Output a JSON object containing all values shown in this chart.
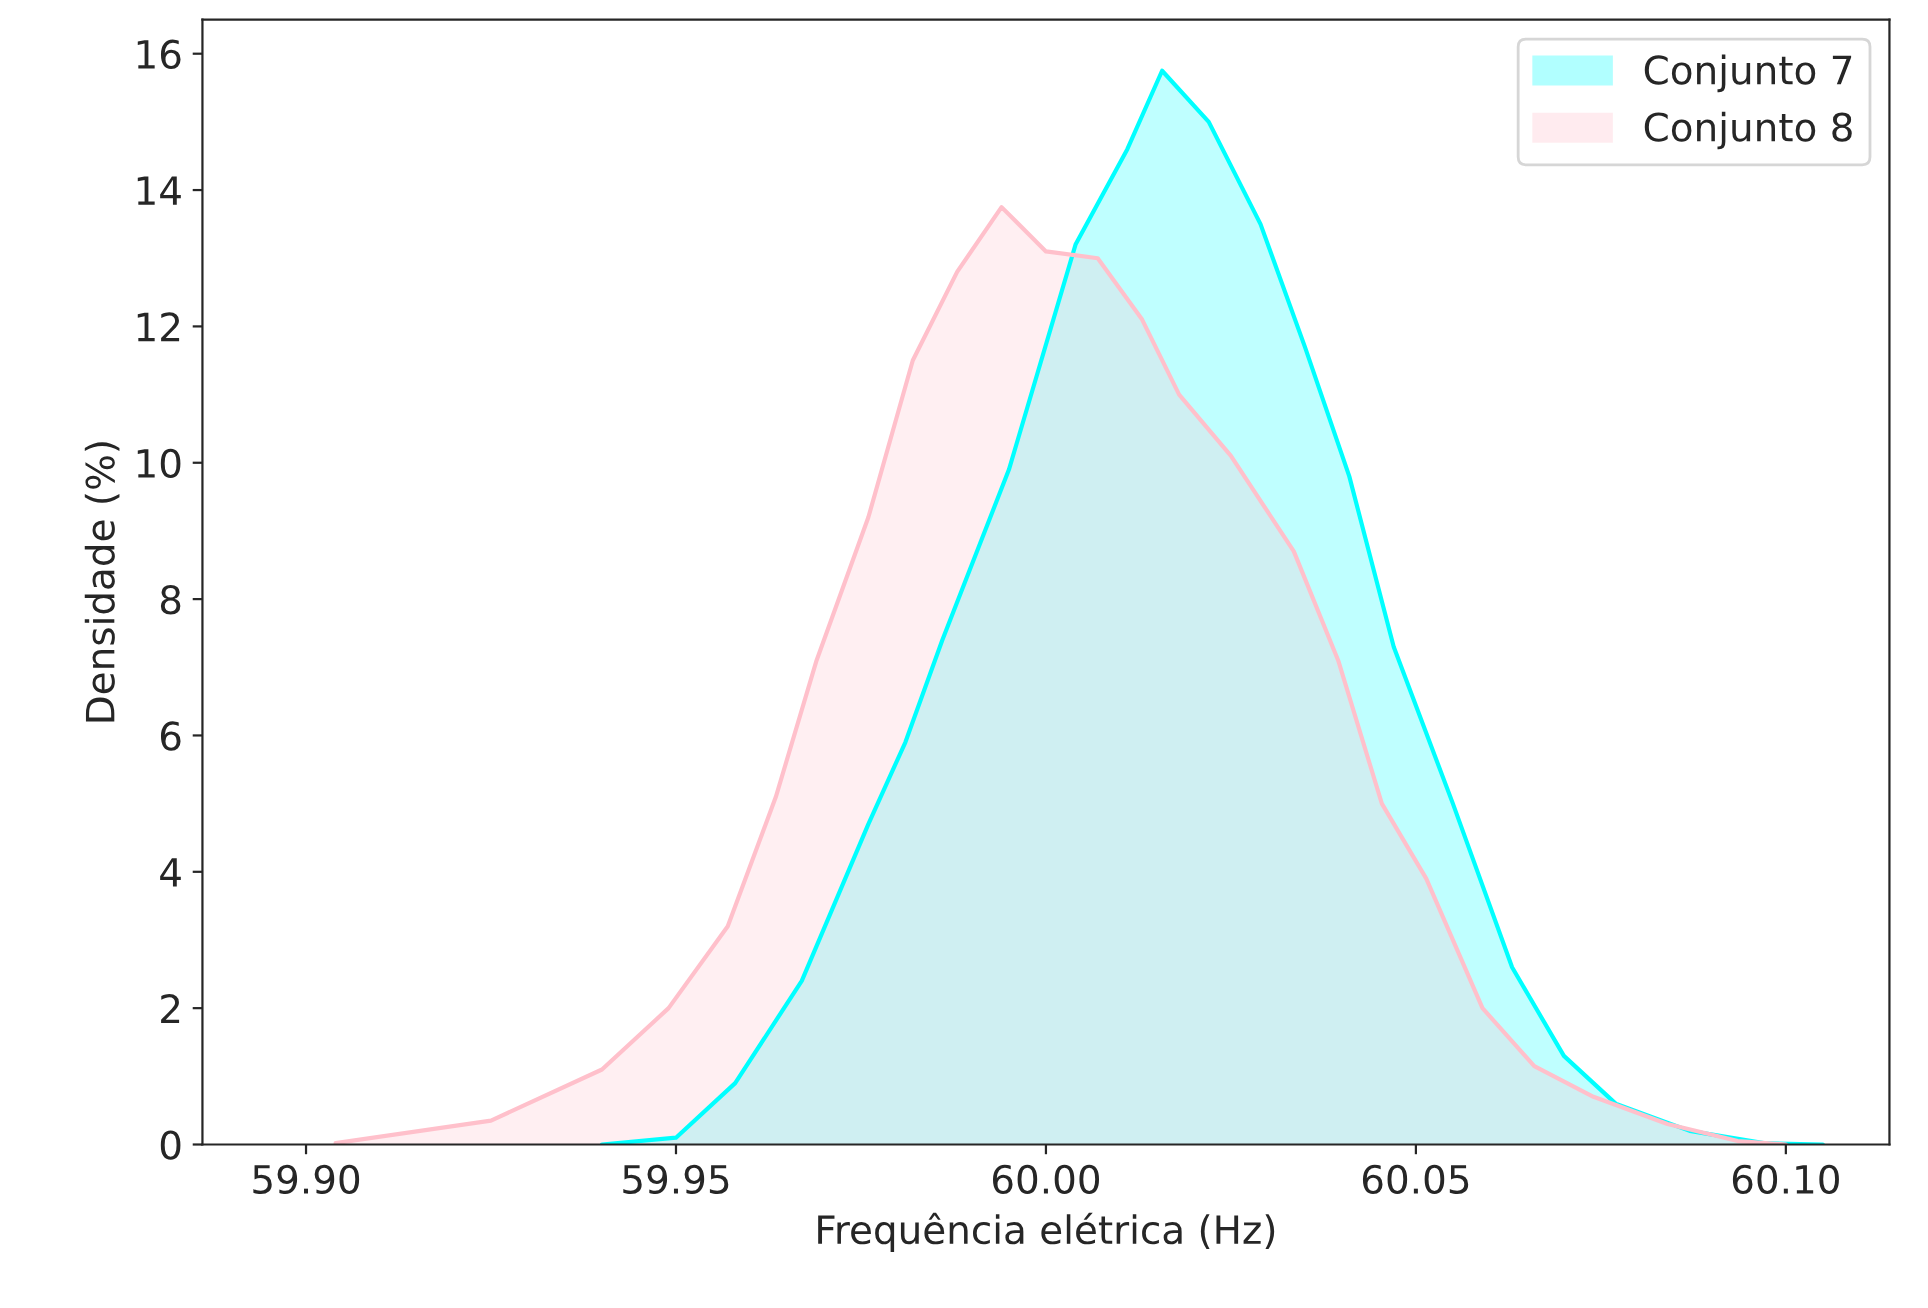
{
  "chart_data": {
    "type": "area",
    "xlabel": "Frequência elétrica (Hz)",
    "ylabel": "Densidade (%)",
    "series": [
      {
        "name": "Conjunto 7",
        "color": "#00ffff",
        "x": [
          59.94,
          59.95,
          59.958,
          59.967,
          59.976,
          59.981,
          59.986,
          59.995,
          60.004,
          60.011,
          60.0157,
          60.022,
          60.029,
          60.035,
          60.041,
          60.047,
          60.055,
          60.063,
          60.07,
          60.077,
          60.087,
          60.097,
          60.105
        ],
        "values": [
          0,
          0.1,
          0.9,
          2.4,
          4.7,
          5.9,
          7.4,
          9.9,
          13.2,
          14.6,
          15.75,
          15.0,
          13.5,
          11.7,
          9.8,
          7.3,
          5.0,
          2.6,
          1.3,
          0.6,
          0.2,
          0.02,
          0
        ]
      },
      {
        "name": "Conjunto 8",
        "color": "#ffc0cb",
        "x": [
          59.904,
          59.925,
          59.94,
          59.949,
          59.957,
          59.9635,
          59.969,
          59.976,
          59.982,
          59.988,
          59.994,
          60.0,
          60.007,
          60.013,
          60.018,
          60.025,
          60.0335,
          60.0395,
          60.0454,
          60.0514,
          60.059,
          60.066,
          60.074,
          60.084,
          60.0935,
          60.1
        ],
        "values": [
          0.02,
          0.35,
          1.1,
          2.0,
          3.2,
          5.1,
          7.1,
          9.2,
          11.5,
          12.8,
          13.75,
          13.1,
          13.0,
          12.1,
          11.0,
          10.1,
          8.7,
          7.1,
          5.0,
          3.9,
          2.0,
          1.15,
          0.7,
          0.3,
          0.05,
          0
        ]
      }
    ],
    "xlim": [
      59.886,
      60.114
    ],
    "ylim": [
      0,
      16.5
    ],
    "xticks": [
      {
        "value": 59.9,
        "label": "59.90"
      },
      {
        "value": 59.95,
        "label": "59.95"
      },
      {
        "value": 60.0,
        "label": "60.00"
      },
      {
        "value": 60.05,
        "label": "60.05"
      },
      {
        "value": 60.1,
        "label": "60.10"
      }
    ],
    "yticks": [
      0,
      2,
      4,
      6,
      8,
      10,
      12,
      14,
      16
    ],
    "grid": false,
    "legend": "top right"
  }
}
